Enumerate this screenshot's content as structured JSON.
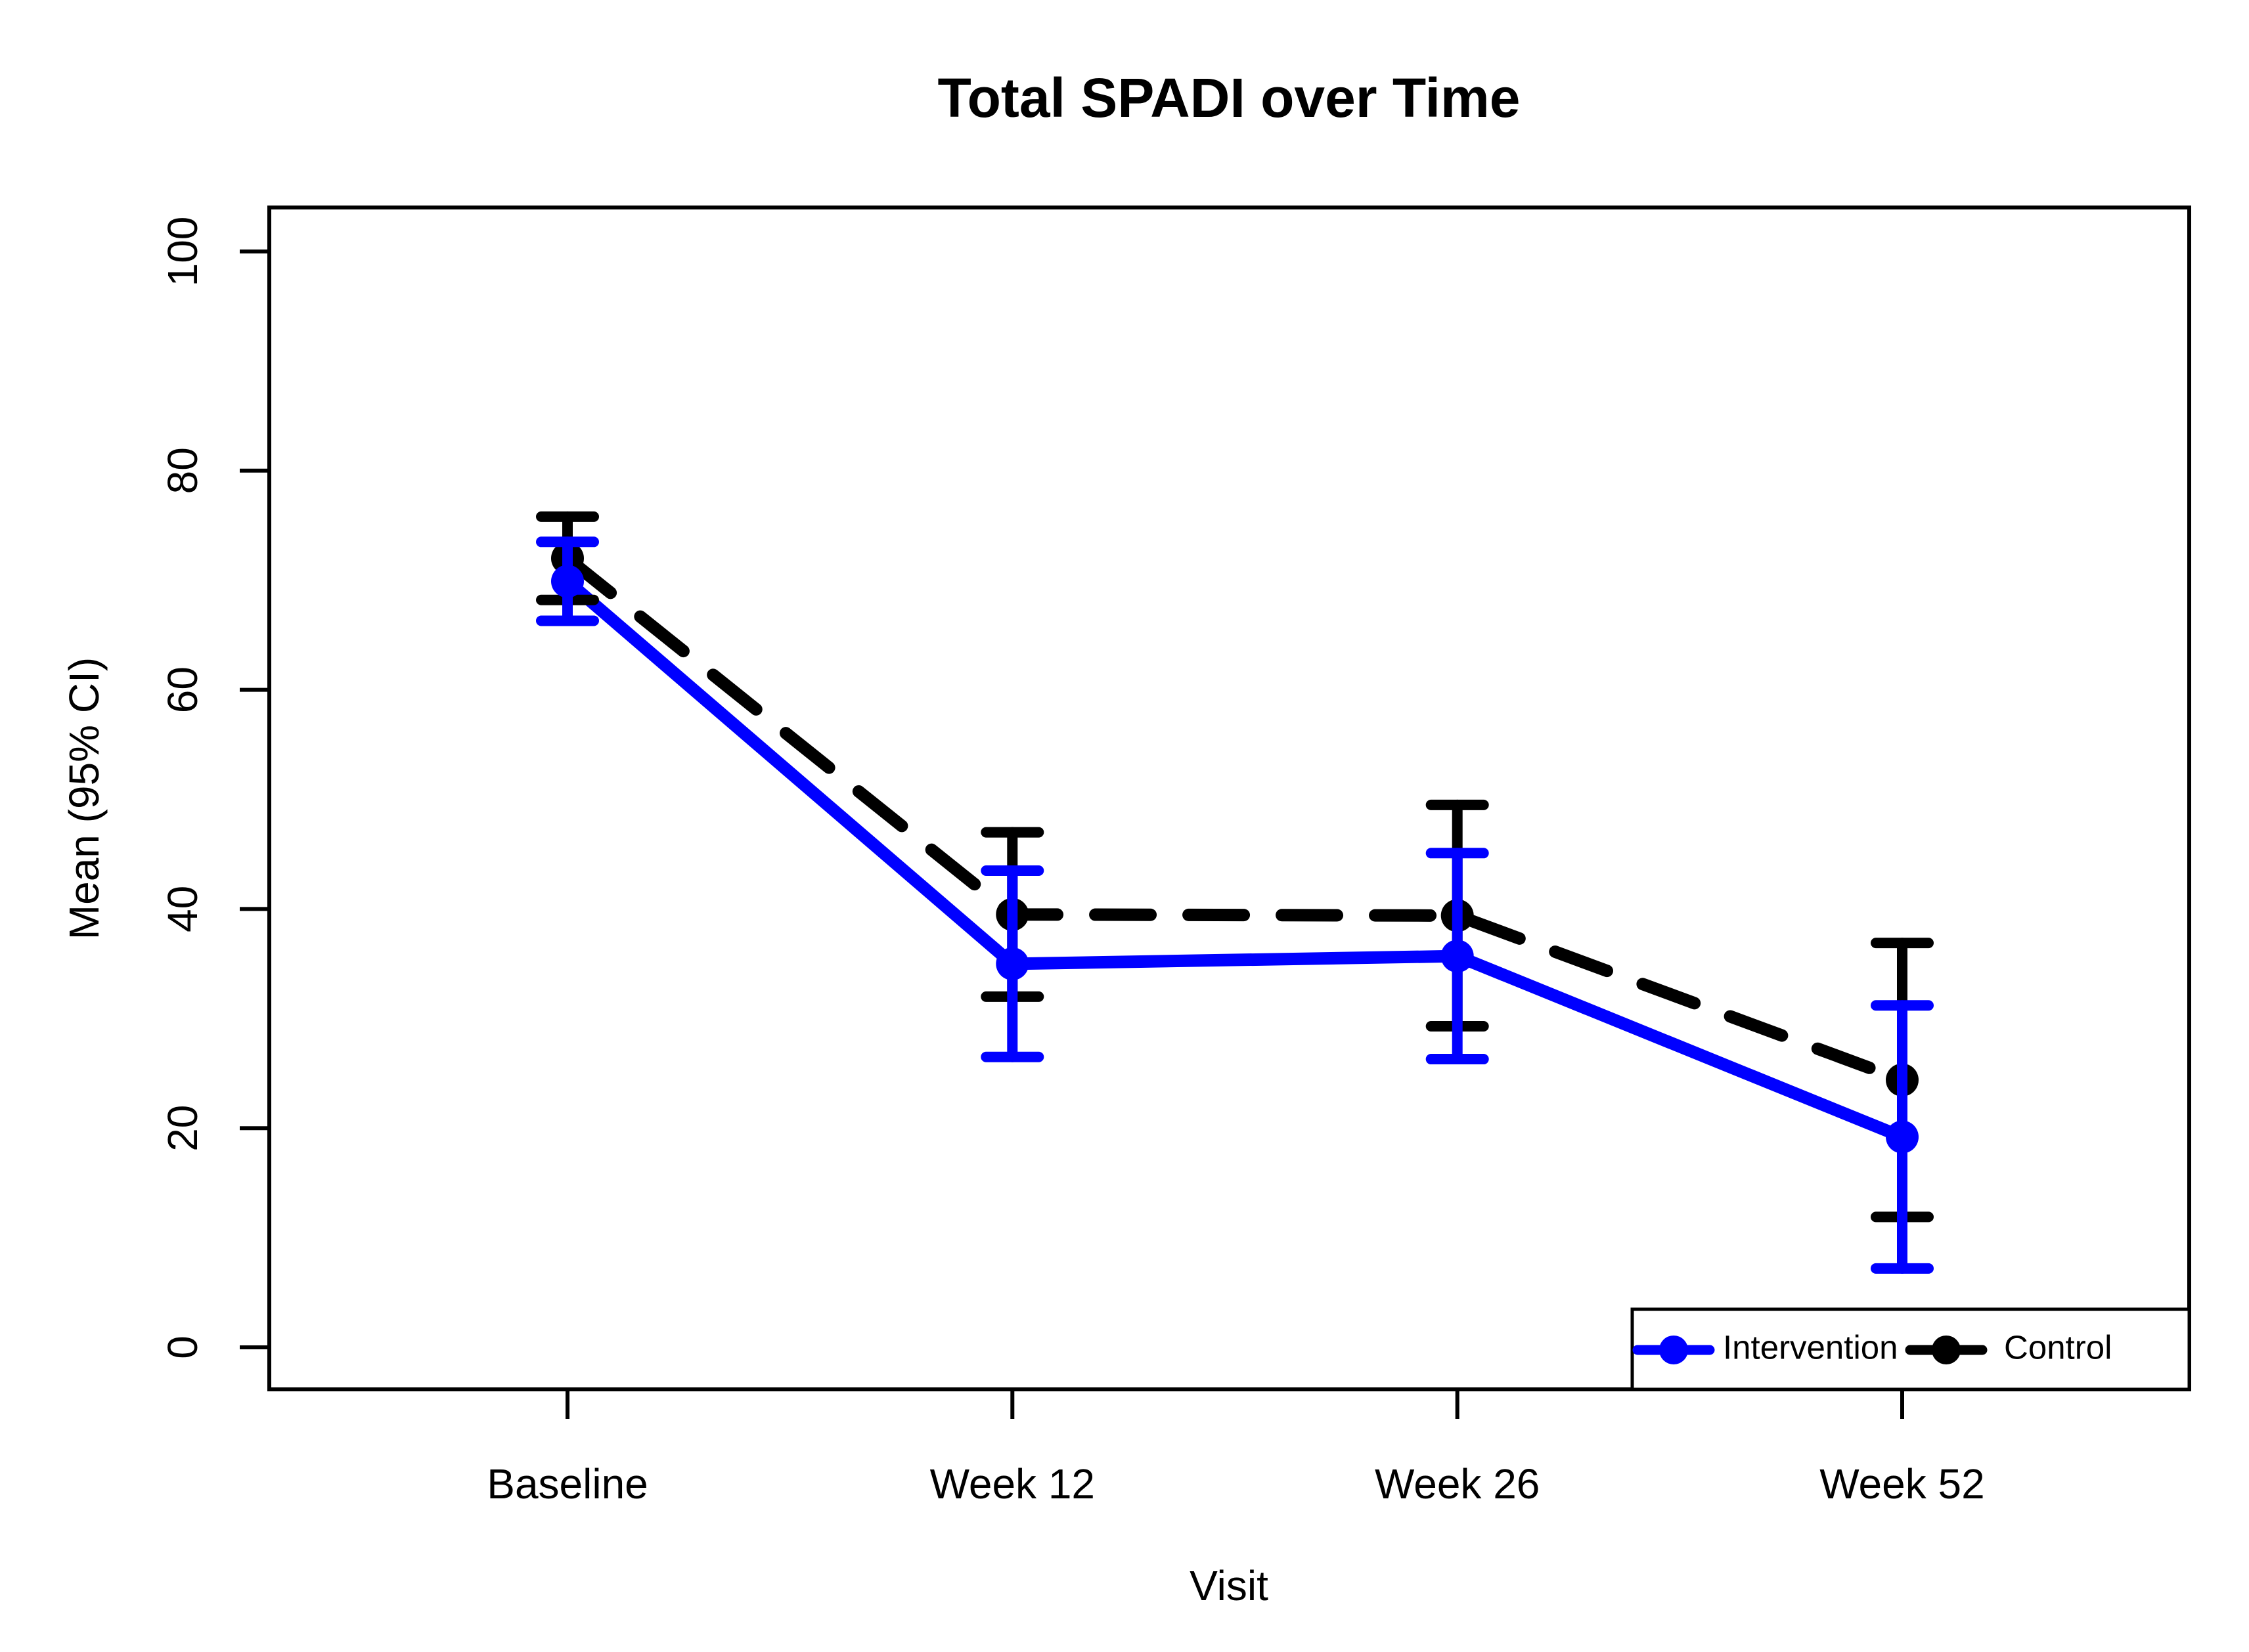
{
  "title": "Total SPADI over Time",
  "axes": {
    "x": {
      "label": "Visit",
      "categories": [
        "Baseline",
        "Week 12",
        "Week 26",
        "Week 52"
      ]
    },
    "y": {
      "label": "Mean (95% CI)",
      "ticks": [
        "0",
        "20",
        "40",
        "60",
        "80",
        "100"
      ]
    }
  },
  "legend": {
    "items": [
      {
        "label": "Intervention",
        "color": "#0000FF",
        "line_style": "solid"
      },
      {
        "label": "Control",
        "color": "#000000",
        "line_style": "dashed"
      }
    ]
  },
  "colors": {
    "intervention": "#0000FF",
    "control": "#000000",
    "axis": "#000000",
    "background": "#FFFFFF"
  },
  "chart_data": {
    "type": "line",
    "title": "Total SPADI over Time",
    "xlabel": "Visit",
    "ylabel": "Mean (95% CI)",
    "x": [
      "Baseline",
      "Week 12",
      "Week 26",
      "Week 52"
    ],
    "ylim": [
      0,
      100
    ],
    "yticks": [
      0,
      20,
      40,
      60,
      80,
      100
    ],
    "grid": false,
    "error_bars": "95% CI",
    "legend_position": "bottom-right",
    "series": [
      {
        "name": "Intervention",
        "color": "#0000FF",
        "line_style": "solid",
        "marker": "filled-circle",
        "means": [
          69.9,
          35.0,
          35.7,
          19.2
        ],
        "ci_lower": [
          66.3,
          26.5,
          26.3,
          7.2
        ],
        "ci_upper": [
          73.5,
          43.5,
          45.1,
          31.2
        ]
      },
      {
        "name": "Control",
        "color": "#000000",
        "line_style": "dashed",
        "marker": "filled-circle",
        "means": [
          72.0,
          39.5,
          39.4,
          24.4
        ],
        "ci_lower": [
          68.2,
          32.0,
          29.3,
          11.9
        ],
        "ci_upper": [
          75.8,
          47.0,
          49.5,
          36.9
        ]
      }
    ]
  }
}
